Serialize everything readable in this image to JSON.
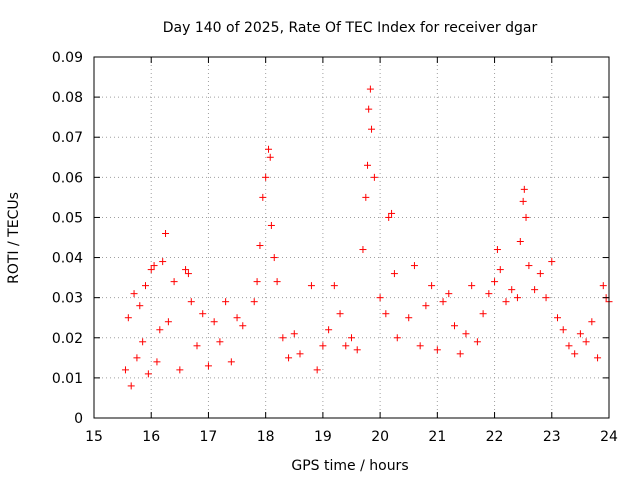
{
  "chart_data": {
    "type": "scatter",
    "title": "Day 140 of 2025, Rate Of TEC Index for receiver dgar",
    "xlabel": "GPS time / hours",
    "ylabel": "ROTI / TECUs",
    "xlim": [
      15,
      24
    ],
    "ylim": [
      0,
      0.09
    ],
    "xticks": [
      "15",
      "16",
      "17",
      "18",
      "19",
      "20",
      "21",
      "22",
      "23",
      "24"
    ],
    "yticks": [
      "0",
      "0.01",
      "0.02",
      "0.03",
      "0.04",
      "0.05",
      "0.06",
      "0.07",
      "0.08",
      "0.09"
    ],
    "grid": true,
    "marker": "+",
    "color": "#ff0000",
    "series": [
      {
        "name": "ROTI",
        "points": [
          [
            15.55,
            0.012
          ],
          [
            15.6,
            0.025
          ],
          [
            15.65,
            0.008
          ],
          [
            15.7,
            0.031
          ],
          [
            15.75,
            0.015
          ],
          [
            15.8,
            0.028
          ],
          [
            15.85,
            0.019
          ],
          [
            15.9,
            0.033
          ],
          [
            15.95,
            0.011
          ],
          [
            16.0,
            0.037
          ],
          [
            16.05,
            0.038
          ],
          [
            16.1,
            0.014
          ],
          [
            16.15,
            0.022
          ],
          [
            16.2,
            0.039
          ],
          [
            16.25,
            0.046
          ],
          [
            16.3,
            0.024
          ],
          [
            16.4,
            0.034
          ],
          [
            16.5,
            0.012
          ],
          [
            16.6,
            0.037
          ],
          [
            16.65,
            0.036
          ],
          [
            16.7,
            0.029
          ],
          [
            16.8,
            0.018
          ],
          [
            16.9,
            0.026
          ],
          [
            17.0,
            0.013
          ],
          [
            17.1,
            0.024
          ],
          [
            17.2,
            0.019
          ],
          [
            17.3,
            0.029
          ],
          [
            17.4,
            0.014
          ],
          [
            17.5,
            0.025
          ],
          [
            17.6,
            0.023
          ],
          [
            17.8,
            0.029
          ],
          [
            17.85,
            0.034
          ],
          [
            17.9,
            0.043
          ],
          [
            17.95,
            0.055
          ],
          [
            18.0,
            0.06
          ],
          [
            18.05,
            0.067
          ],
          [
            18.08,
            0.065
          ],
          [
            18.1,
            0.048
          ],
          [
            18.15,
            0.04
          ],
          [
            18.2,
            0.034
          ],
          [
            18.3,
            0.02
          ],
          [
            18.4,
            0.015
          ],
          [
            18.5,
            0.021
          ],
          [
            18.6,
            0.016
          ],
          [
            18.8,
            0.033
          ],
          [
            18.9,
            0.012
          ],
          [
            19.0,
            0.018
          ],
          [
            19.1,
            0.022
          ],
          [
            19.2,
            0.033
          ],
          [
            19.3,
            0.026
          ],
          [
            19.4,
            0.018
          ],
          [
            19.5,
            0.02
          ],
          [
            19.6,
            0.017
          ],
          [
            19.7,
            0.042
          ],
          [
            19.75,
            0.055
          ],
          [
            19.78,
            0.063
          ],
          [
            19.8,
            0.077
          ],
          [
            19.83,
            0.082
          ],
          [
            19.85,
            0.072
          ],
          [
            19.9,
            0.06
          ],
          [
            20.0,
            0.03
          ],
          [
            20.1,
            0.026
          ],
          [
            20.15,
            0.05
          ],
          [
            20.2,
            0.051
          ],
          [
            20.25,
            0.036
          ],
          [
            20.3,
            0.02
          ],
          [
            20.5,
            0.025
          ],
          [
            20.6,
            0.038
          ],
          [
            20.7,
            0.018
          ],
          [
            20.8,
            0.028
          ],
          [
            20.9,
            0.033
          ],
          [
            21.0,
            0.017
          ],
          [
            21.1,
            0.029
          ],
          [
            21.2,
            0.031
          ],
          [
            21.3,
            0.023
          ],
          [
            21.4,
            0.016
          ],
          [
            21.5,
            0.021
          ],
          [
            21.6,
            0.033
          ],
          [
            21.7,
            0.019
          ],
          [
            21.8,
            0.026
          ],
          [
            21.9,
            0.031
          ],
          [
            22.0,
            0.034
          ],
          [
            22.05,
            0.042
          ],
          [
            22.1,
            0.037
          ],
          [
            22.2,
            0.029
          ],
          [
            22.3,
            0.032
          ],
          [
            22.4,
            0.03
          ],
          [
            22.45,
            0.044
          ],
          [
            22.5,
            0.054
          ],
          [
            22.52,
            0.057
          ],
          [
            22.55,
            0.05
          ],
          [
            22.6,
            0.038
          ],
          [
            22.7,
            0.032
          ],
          [
            22.8,
            0.036
          ],
          [
            22.9,
            0.03
          ],
          [
            23.0,
            0.039
          ],
          [
            23.1,
            0.025
          ],
          [
            23.2,
            0.022
          ],
          [
            23.3,
            0.018
          ],
          [
            23.4,
            0.016
          ],
          [
            23.5,
            0.021
          ],
          [
            23.6,
            0.019
          ],
          [
            23.7,
            0.024
          ],
          [
            23.8,
            0.015
          ],
          [
            23.9,
            0.033
          ],
          [
            23.95,
            0.03
          ],
          [
            24.0,
            0.029
          ]
        ]
      }
    ]
  }
}
